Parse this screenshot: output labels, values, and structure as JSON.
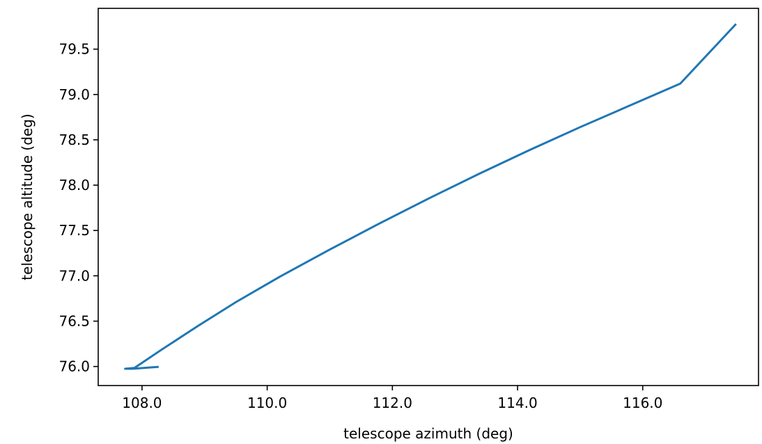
{
  "chart_data": {
    "type": "line",
    "title": "",
    "xlabel": "telescope azimuth (deg)",
    "ylabel": "telescope altitude (deg)",
    "xlim": [
      107.3,
      117.85
    ],
    "ylim": [
      75.79,
      79.95
    ],
    "xticks": [
      108.0,
      110.0,
      112.0,
      114.0,
      116.0
    ],
    "xtick_labels": [
      "108.0",
      "110.0",
      "112.0",
      "114.0",
      "116.0"
    ],
    "yticks": [
      76.0,
      76.5,
      77.0,
      77.5,
      78.0,
      78.5,
      79.0,
      79.5
    ],
    "ytick_labels": [
      "76.0",
      "76.5",
      "77.0",
      "77.5",
      "78.0",
      "78.5",
      "79.0",
      "79.5"
    ],
    "grid": false,
    "legend": "none",
    "series": [
      {
        "color": "#1f77b4",
        "x": [
          108.25,
          107.85,
          107.73,
          107.88,
          108.3,
          108.9,
          109.5,
          110.2,
          111.0,
          111.8,
          112.6,
          113.4,
          114.2,
          115.0,
          115.8,
          116.6,
          117.48
        ],
        "y": [
          75.995,
          75.975,
          75.975,
          75.985,
          76.18,
          76.45,
          76.71,
          76.99,
          77.29,
          77.58,
          77.86,
          78.13,
          78.39,
          78.64,
          78.88,
          79.12,
          79.77
        ]
      }
    ]
  }
}
